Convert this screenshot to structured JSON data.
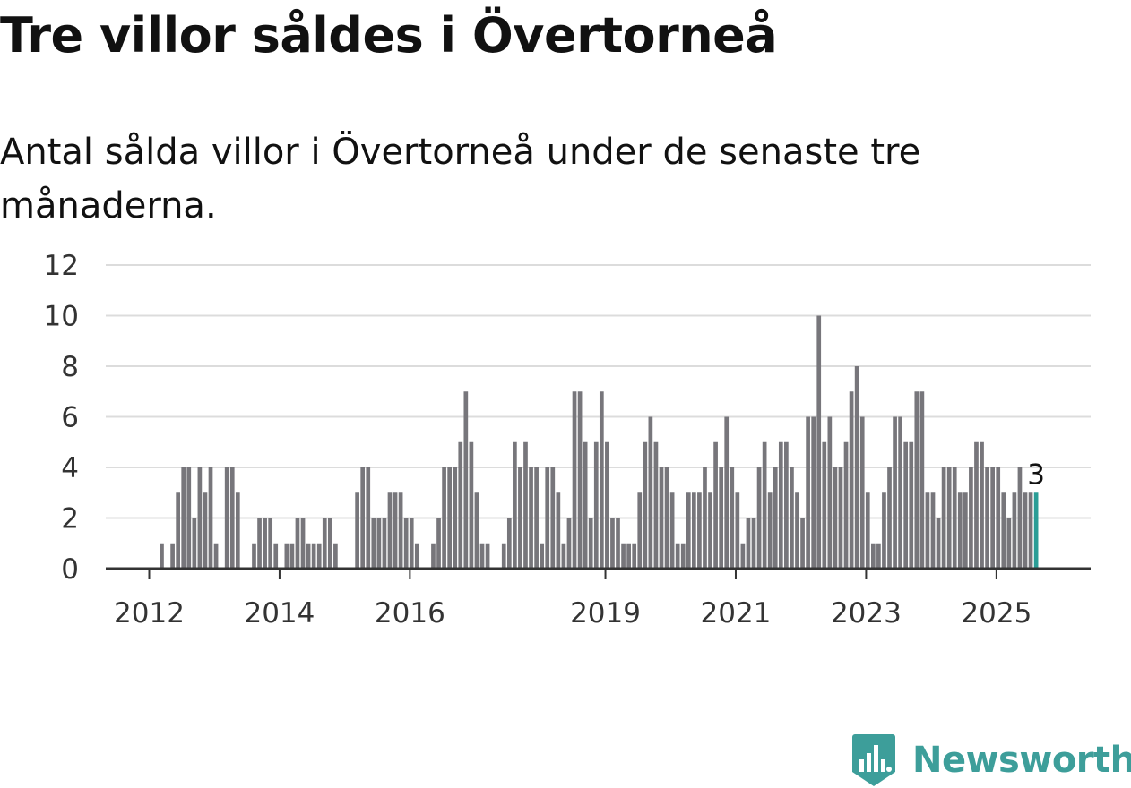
{
  "chart_data": {
    "type": "bar",
    "title": "Tre villor såldes i Övertorneå",
    "subtitle": "Antal sålda villor i Övertorneå under de senaste tre månaderna.",
    "xlabel": "",
    "ylabel": "",
    "ylim": [
      0,
      12
    ],
    "yticks": [
      0,
      2,
      4,
      6,
      8,
      10,
      12
    ],
    "grid": true,
    "x_start": "2011-01",
    "x_end": "2025-08",
    "xticks": [
      {
        "label": "2012",
        "month": "2012-01"
      },
      {
        "label": "2014",
        "month": "2014-01"
      },
      {
        "label": "2016",
        "month": "2016-01"
      },
      {
        "label": "2019",
        "month": "2019-01"
      },
      {
        "label": "2021",
        "month": "2021-01"
      },
      {
        "label": "2023",
        "month": "2023-01"
      },
      {
        "label": "2025",
        "month": "2025-01"
      }
    ],
    "series": [
      {
        "values": [
          0,
          0,
          0,
          0,
          0,
          0,
          0,
          0,
          0,
          0,
          0,
          0,
          0,
          0,
          1,
          0,
          1,
          3,
          4,
          4,
          2,
          4,
          3,
          4,
          1,
          0,
          4,
          4,
          3,
          0,
          0,
          1,
          2,
          2,
          2,
          1,
          0,
          1,
          1,
          2,
          2,
          1,
          1,
          1,
          2,
          2,
          1,
          0,
          0,
          0,
          3,
          4,
          4,
          2,
          2,
          2,
          3,
          3,
          3,
          2,
          2,
          1,
          0,
          0,
          1,
          2,
          4,
          4,
          4,
          5,
          7,
          5,
          3,
          1,
          1,
          0,
          0,
          1,
          2,
          5,
          4,
          5,
          4,
          4,
          1,
          4,
          4,
          3,
          1,
          2,
          7,
          7,
          5,
          2,
          5,
          7,
          5,
          2,
          2,
          1,
          1,
          1,
          3,
          5,
          6,
          5,
          4,
          4,
          3,
          1,
          1,
          3,
          3,
          3,
          4,
          3,
          5,
          4,
          6,
          4,
          3,
          1,
          2,
          2,
          4,
          5,
          3,
          4,
          5,
          5,
          4,
          3,
          2,
          6,
          6,
          10,
          5,
          6,
          4,
          4,
          5,
          7,
          8,
          6,
          3,
          1,
          1,
          3,
          4,
          6,
          6,
          5,
          5,
          7,
          7,
          3,
          3,
          2,
          4,
          4,
          4,
          3,
          3,
          4,
          5,
          5,
          4,
          4,
          4,
          3,
          2,
          3,
          4,
          3,
          3,
          3
        ]
      }
    ],
    "highlight_color": "#2a9d96",
    "bar_color": "#77767b",
    "last_value_label": "3"
  },
  "brand": {
    "name": "Newsworthy",
    "color": "#3d9e9a"
  }
}
